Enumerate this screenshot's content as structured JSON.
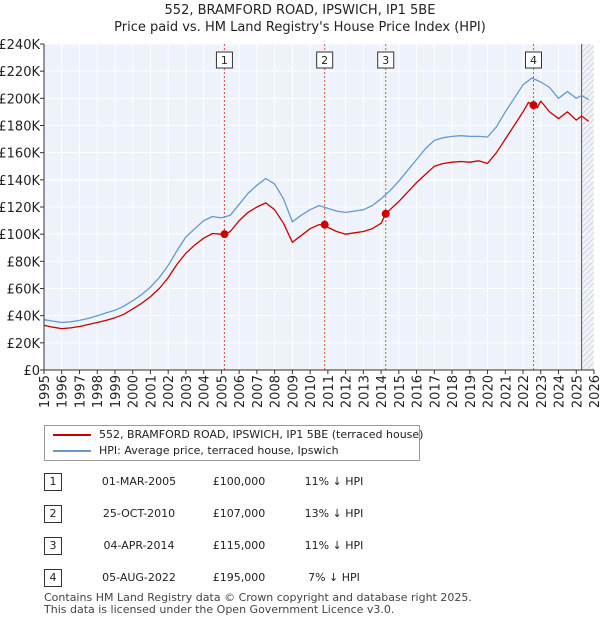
{
  "chart_data": {
    "type": "line",
    "title": "552, BRAMFORD ROAD, IPSWICH, IP1 5BE",
    "subtitle": "Price paid vs. HM Land Registry's House Price Index (HPI)",
    "xlim": [
      1995,
      2026
    ],
    "ylim": [
      0,
      240000
    ],
    "y_ticks": [
      {
        "value": 0,
        "label": "£0"
      },
      {
        "value": 20000,
        "label": "£20K"
      },
      {
        "value": 40000,
        "label": "£40K"
      },
      {
        "value": 60000,
        "label": "£60K"
      },
      {
        "value": 80000,
        "label": "£80K"
      },
      {
        "value": 100000,
        "label": "£100K"
      },
      {
        "value": 120000,
        "label": "£120K"
      },
      {
        "value": 140000,
        "label": "£140K"
      },
      {
        "value": 160000,
        "label": "£160K"
      },
      {
        "value": 180000,
        "label": "£180K"
      },
      {
        "value": 200000,
        "label": "£200K"
      },
      {
        "value": 220000,
        "label": "£220K"
      },
      {
        "value": 240000,
        "label": "£240K"
      }
    ],
    "x_ticks": [
      "1995",
      "1996",
      "1997",
      "1998",
      "1999",
      "2000",
      "2001",
      "2002",
      "2003",
      "2004",
      "2005",
      "2006",
      "2007",
      "2008",
      "2009",
      "2010",
      "2011",
      "2012",
      "2013",
      "2014",
      "2015",
      "2016",
      "2017",
      "2018",
      "2019",
      "2020",
      "2021",
      "2022",
      "2023",
      "2024",
      "2025",
      "2026"
    ],
    "forecast_start": 2025.3,
    "series": [
      {
        "name": "552, BRAMFORD ROAD, IPSWICH, IP1 5BE (terraced house)",
        "color": "#cc0000",
        "x": [
          1995.0,
          1995.5,
          1996.0,
          1996.5,
          1997.0,
          1997.5,
          1998.0,
          1998.5,
          1999.0,
          1999.5,
          2000.0,
          2000.5,
          2001.0,
          2001.5,
          2002.0,
          2002.5,
          2003.0,
          2003.5,
          2004.0,
          2004.5,
          2005.0,
          2005.17,
          2005.5,
          2006.0,
          2006.5,
          2007.0,
          2007.5,
          2008.0,
          2008.5,
          2009.0,
          2009.3,
          2009.7,
          2010.0,
          2010.5,
          2010.82,
          2011.0,
          2011.5,
          2012.0,
          2012.5,
          2013.0,
          2013.5,
          2014.0,
          2014.26,
          2014.5,
          2015.0,
          2015.5,
          2016.0,
          2016.5,
          2017.0,
          2017.5,
          2018.0,
          2018.5,
          2019.0,
          2019.5,
          2020.0,
          2020.5,
          2021.0,
          2021.5,
          2022.0,
          2022.3,
          2022.59,
          2022.8,
          2023.0,
          2023.5,
          2024.0,
          2024.5,
          2025.0,
          2025.3,
          2025.7
        ],
        "y": [
          33000,
          31500,
          30500,
          31000,
          32000,
          33500,
          35000,
          36500,
          38500,
          41000,
          45000,
          49000,
          54000,
          60000,
          68000,
          78000,
          86000,
          92000,
          97000,
          100500,
          100000,
          100000,
          102000,
          110000,
          116000,
          120000,
          123000,
          118000,
          108000,
          94000,
          97000,
          101000,
          104000,
          107000,
          107000,
          105000,
          102000,
          100000,
          101000,
          102000,
          104000,
          108000,
          115000,
          118000,
          124000,
          131000,
          138000,
          144000,
          150000,
          152000,
          153000,
          153500,
          153000,
          154000,
          152000,
          160000,
          170000,
          180000,
          190000,
          197000,
          195000,
          193000,
          198000,
          190000,
          185000,
          190000,
          184000,
          187000,
          183000
        ]
      },
      {
        "name": "HPI: Average price, terraced house, Ipswich",
        "color": "#6699cc",
        "x": [
          1995.0,
          1995.5,
          1996.0,
          1996.5,
          1997.0,
          1997.5,
          1998.0,
          1998.5,
          1999.0,
          1999.5,
          2000.0,
          2000.5,
          2001.0,
          2001.5,
          2002.0,
          2002.5,
          2003.0,
          2003.5,
          2004.0,
          2004.5,
          2005.0,
          2005.5,
          2006.0,
          2006.5,
          2007.0,
          2007.5,
          2008.0,
          2008.5,
          2009.0,
          2009.5,
          2010.0,
          2010.5,
          2011.0,
          2011.5,
          2012.0,
          2012.5,
          2013.0,
          2013.5,
          2014.0,
          2014.5,
          2015.0,
          2015.5,
          2016.0,
          2016.5,
          2017.0,
          2017.5,
          2018.0,
          2018.5,
          2019.0,
          2019.5,
          2020.0,
          2020.5,
          2021.0,
          2021.5,
          2022.0,
          2022.5,
          2023.0,
          2023.5,
          2024.0,
          2024.5,
          2025.0,
          2025.3,
          2025.7
        ],
        "y": [
          37000,
          36000,
          35000,
          35500,
          36500,
          38000,
          40000,
          42000,
          44000,
          47000,
          51000,
          55500,
          61000,
          68000,
          77000,
          88000,
          98000,
          104000,
          110000,
          113000,
          112000,
          114000,
          122000,
          130000,
          136000,
          141000,
          137000,
          126000,
          109000,
          114000,
          118000,
          121000,
          119000,
          117000,
          116000,
          117000,
          118000,
          121000,
          126000,
          132000,
          139000,
          147000,
          155000,
          163000,
          169000,
          171000,
          172000,
          172500,
          172000,
          172000,
          171500,
          179000,
          190000,
          200000,
          210000,
          215000,
          212000,
          208000,
          200000,
          205000,
          200000,
          202000,
          199000
        ]
      }
    ],
    "sales": [
      {
        "id": "1",
        "x": 2005.17,
        "price": 100000
      },
      {
        "id": "2",
        "x": 2010.82,
        "price": 107000
      },
      {
        "id": "3",
        "x": 2014.26,
        "price": 115000
      },
      {
        "id": "4",
        "x": 2022.59,
        "price": 195000
      }
    ]
  },
  "legend": {
    "property_label": "552, BRAMFORD ROAD, IPSWICH, IP1 5BE (terraced house)",
    "hpi_label": "HPI: Average price, terraced house, Ipswich"
  },
  "transactions": [
    {
      "id": "1",
      "date": "01-MAR-2005",
      "price": "£100,000",
      "hpi_diff": "11% ↓ HPI"
    },
    {
      "id": "2",
      "date": "25-OCT-2010",
      "price": "£107,000",
      "hpi_diff": "13% ↓ HPI"
    },
    {
      "id": "3",
      "date": "04-APR-2014",
      "price": "£115,000",
      "hpi_diff": "11% ↓ HPI"
    },
    {
      "id": "4",
      "date": "05-AUG-2022",
      "price": "£195,000",
      "hpi_diff": "7% ↓ HPI"
    }
  ],
  "footer": {
    "line1": "Contains HM Land Registry data © Crown copyright and database right 2025.",
    "line2": "This data is licensed under the Open Government Licence v3.0."
  }
}
